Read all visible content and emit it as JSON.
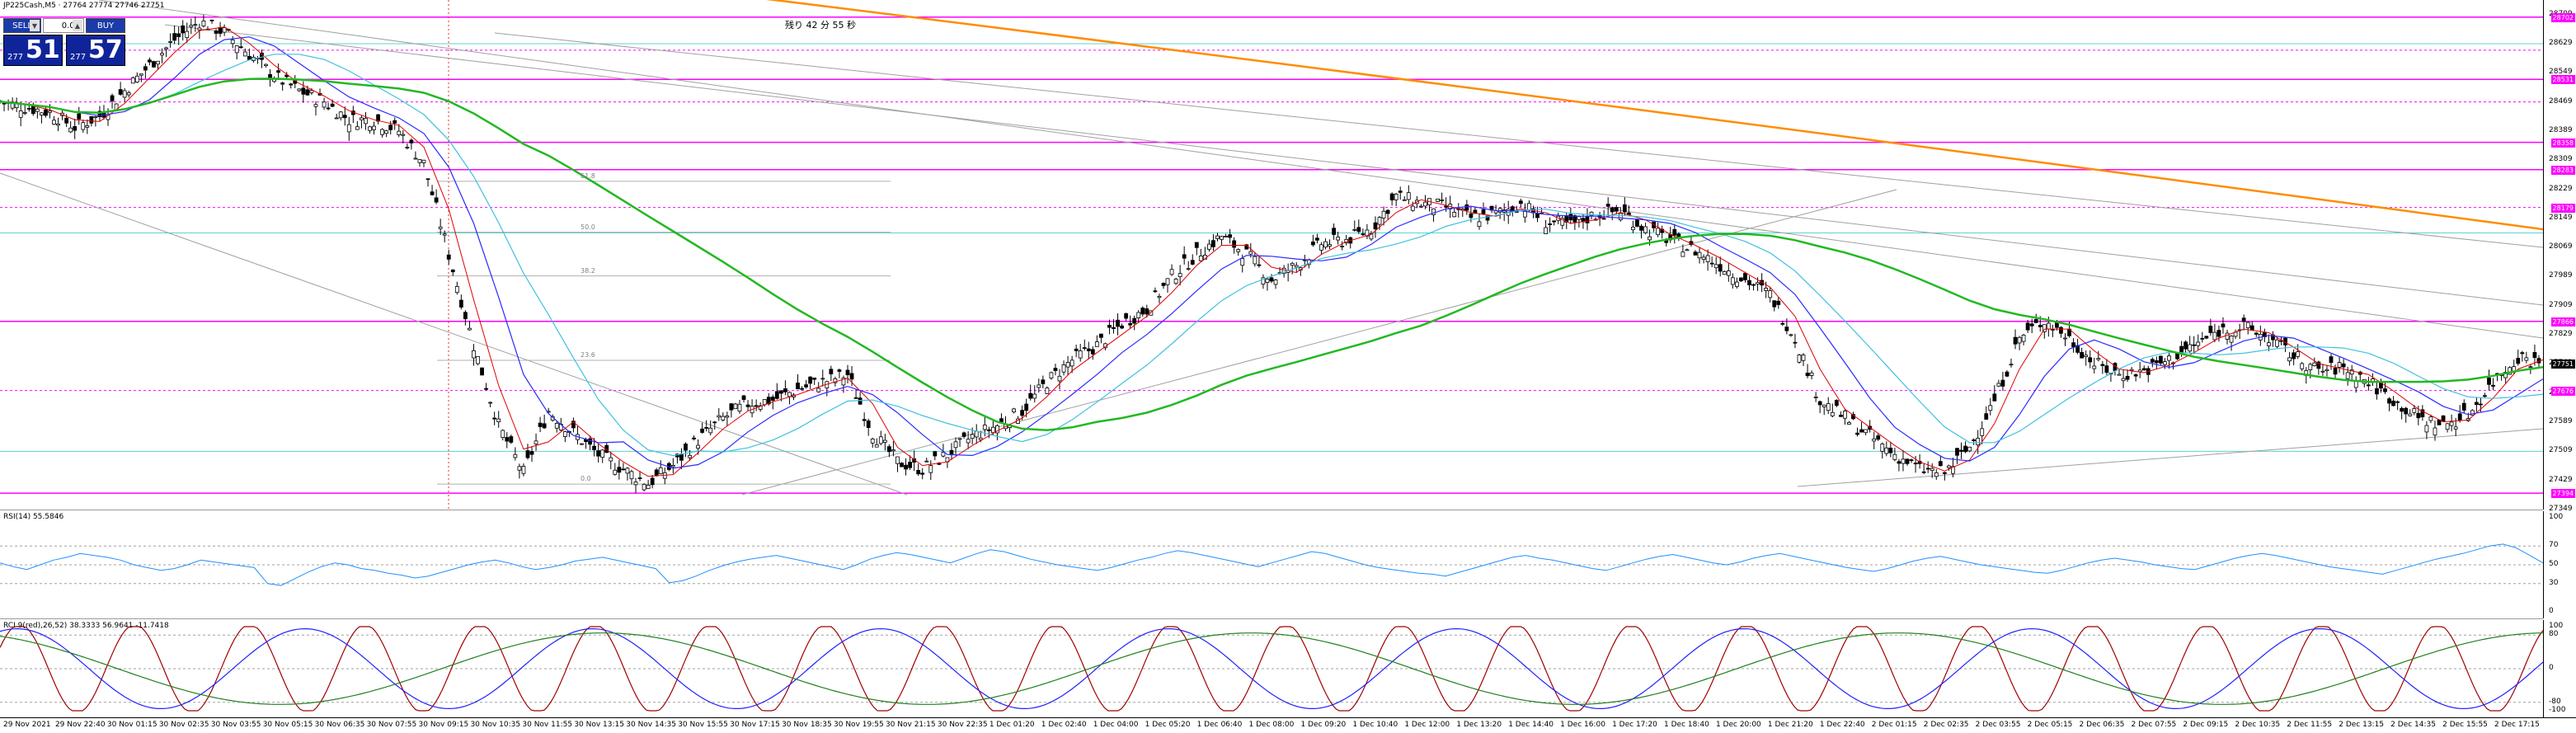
{
  "window": {
    "title": "JP225Cash,M5 · 27764 27774 27746 27751"
  },
  "trade_panel": {
    "sell_label": "SELL",
    "buy_label": "BUY",
    "lot_value": "0.00",
    "bid_small": "277",
    "bid_big": "51",
    "ask_small": "277",
    "ask_big": "57"
  },
  "countdown": "残り 42 分 55 秒",
  "fib_labels": [
    "61.8",
    "50.0",
    "38.2",
    "23.6",
    "0.0"
  ],
  "y_axis_main": [
    "28709",
    "28629",
    "28549",
    "28469",
    "28389",
    "28309",
    "28229",
    "28149",
    "28069",
    "27989",
    "27909",
    "27829",
    "27749",
    "27669",
    "27589",
    "27509",
    "27429",
    "27349"
  ],
  "price_tags": [
    "28702",
    "28531",
    "28358",
    "28283",
    "28179",
    "27866",
    "27751",
    "27676",
    "27394"
  ],
  "rsi": {
    "title": "RSI(14) 55.5846",
    "levels": [
      "100",
      "70",
      "50",
      "30",
      "0"
    ],
    "series": [
      52,
      48,
      45,
      50,
      55,
      58,
      62,
      60,
      58,
      55,
      50,
      47,
      44,
      46,
      50,
      55,
      53,
      51,
      49,
      47,
      30,
      28,
      35,
      42,
      48,
      52,
      50,
      46,
      44,
      41,
      39,
      36,
      38,
      42,
      46,
      50,
      53,
      55,
      52,
      48,
      45,
      47,
      50,
      54,
      56,
      58,
      55,
      52,
      49,
      46,
      31,
      33,
      38,
      44,
      49,
      53,
      56,
      58,
      60,
      57,
      54,
      51,
      48,
      45,
      50,
      56,
      60,
      63,
      61,
      58,
      55,
      52,
      57,
      62,
      66,
      64,
      60,
      56,
      53,
      50,
      48,
      46,
      44,
      47,
      51,
      55,
      58,
      62,
      65,
      63,
      60,
      57,
      54,
      51,
      48,
      52,
      56,
      60,
      64,
      62,
      58,
      54,
      50,
      47,
      45,
      43,
      41,
      40,
      38,
      42,
      46,
      50,
      54,
      58,
      60,
      57,
      55,
      52,
      49,
      46,
      44,
      48,
      52,
      56,
      59,
      61,
      58,
      55,
      52,
      50,
      53,
      57,
      60,
      62,
      59,
      56,
      53,
      50,
      47,
      45,
      43,
      46,
      50,
      54,
      57,
      59,
      56,
      53,
      50,
      48,
      46,
      44,
      42,
      41,
      44,
      48,
      52,
      55,
      57,
      55,
      53,
      50,
      48,
      46,
      45,
      49,
      53,
      57,
      60,
      62,
      60,
      57,
      54,
      51,
      48,
      46,
      44,
      42,
      40,
      44,
      48,
      52,
      56,
      59,
      62,
      66,
      70,
      72,
      68,
      60,
      52
    ]
  },
  "rci": {
    "title": "RCI 9(red),26,52) 38.3333 56.9641 -11.7418",
    "levels": [
      "100",
      "80",
      "0",
      "-80",
      "-100"
    ]
  },
  "x_axis": [
    "29 Nov 2021",
    "29 Nov 22:40",
    "30 Nov 01:15",
    "30 Nov 02:35",
    "30 Nov 03:55",
    "30 Nov 05:15",
    "30 Nov 06:35",
    "30 Nov 07:55",
    "30 Nov 09:15",
    "30 Nov 10:35",
    "30 Nov 11:55",
    "30 Nov 13:15",
    "30 Nov 14:35",
    "30 Nov 15:55",
    "30 Nov 17:15",
    "30 Nov 18:35",
    "30 Nov 19:55",
    "30 Nov 21:15",
    "30 Nov 22:35",
    "1 Dec 01:20",
    "1 Dec 02:40",
    "1 Dec 04:00",
    "1 Dec 05:20",
    "1 Dec 06:40",
    "1 Dec 08:00",
    "1 Dec 09:20",
    "1 Dec 10:40",
    "1 Dec 12:00",
    "1 Dec 13:20",
    "1 Dec 14:40",
    "1 Dec 16:00",
    "1 Dec 17:20",
    "1 Dec 18:40",
    "1 Dec 20:00",
    "1 Dec 21:20",
    "1 Dec 22:40",
    "2 Dec 01:15",
    "2 Dec 02:35",
    "2 Dec 03:55",
    "2 Dec 05:15",
    "2 Dec 06:35",
    "2 Dec 07:55",
    "2 Dec 09:15",
    "2 Dec 10:35",
    "2 Dec 11:55",
    "2 Dec 13:15",
    "2 Dec 14:35",
    "2 Dec 15:55",
    "2 Dec 17:15"
  ],
  "price_path": [
    28470,
    28455,
    28440,
    28400,
    28430,
    28500,
    28570,
    28640,
    28690,
    28660,
    28600,
    28540,
    28500,
    28470,
    28420,
    28420,
    28390,
    28300,
    28050,
    27800,
    27580,
    27450,
    27620,
    27560,
    27500,
    27460,
    27420,
    27470,
    27540,
    27600,
    27640,
    27650,
    27680,
    27700,
    27720,
    27560,
    27480,
    27460,
    27500,
    27550,
    27580,
    27620,
    27700,
    27760,
    27800,
    27860,
    27900,
    27990,
    28050,
    28100,
    28050,
    27980,
    28020,
    28080,
    28090,
    28120,
    28210,
    28190,
    28180,
    28150,
    28160,
    28190,
    28140,
    28130,
    28160,
    28170,
    28120,
    28090,
    28060,
    28020,
    27980,
    27940,
    27820,
    27650,
    27600,
    27550,
    27500,
    27460,
    27450,
    27520,
    27650,
    27820,
    27870,
    27820,
    27750,
    27720,
    27730,
    27760,
    27800,
    27840,
    27850,
    27820,
    27770,
    27730,
    27740,
    27700,
    27650,
    27600,
    27580,
    27610,
    27700,
    27770,
    27751
  ],
  "colors": {
    "magenta": "#ff00ff",
    "green_ma": "#22b822",
    "orange_ma": "#ff8c00",
    "blue_ma": "#2a2aff",
    "cyan_line": "#40c0e0",
    "red_ma": "#e00000",
    "rsi_line": "#1e90ff"
  }
}
